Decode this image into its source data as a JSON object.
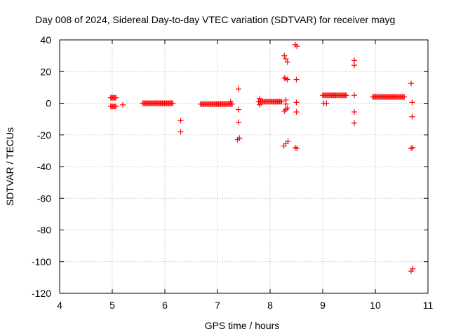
{
  "chart_data": {
    "type": "scatter",
    "title": "Day 008 of 2024, Sidereal Day-to-day VTEC variation (SDTVAR) for receiver mayg",
    "xlabel": "GPS time / hours",
    "ylabel": "SDTVAR / TECUs",
    "xlim": [
      4,
      11
    ],
    "ylim": [
      -120,
      40
    ],
    "xticks": [
      4,
      5,
      6,
      7,
      8,
      9,
      10,
      11
    ],
    "yticks": [
      -120,
      -100,
      -80,
      -60,
      -40,
      -20,
      0,
      20,
      40
    ],
    "grid": true,
    "marker": "plus",
    "color": "#ff0000",
    "series": [
      {
        "name": "SDTVAR",
        "segments": [
          {
            "x0": 4.97,
            "x1": 5.07,
            "y0": 3.5,
            "y1": 3.5
          },
          {
            "x0": 4.97,
            "x1": 5.07,
            "y0": -2.0,
            "y1": -2.0
          },
          {
            "x0": 5.58,
            "x1": 6.15,
            "y0": 0.0,
            "y1": 0.0
          },
          {
            "x0": 6.68,
            "x1": 7.28,
            "y0": -0.5,
            "y1": -0.5
          },
          {
            "x0": 7.78,
            "x1": 8.22,
            "y0": 1.0,
            "y1": 1.0
          },
          {
            "x0": 9.0,
            "x1": 9.45,
            "y0": 5.0,
            "y1": 5.0
          },
          {
            "x0": 9.95,
            "x1": 10.55,
            "y0": 4.0,
            "y1": 4.0
          }
        ],
        "points": [
          {
            "x": 5.2,
            "y": -1
          },
          {
            "x": 6.3,
            "y": -11
          },
          {
            "x": 6.3,
            "y": -18
          },
          {
            "x": 7.25,
            "y": 1
          },
          {
            "x": 7.4,
            "y": 9
          },
          {
            "x": 7.4,
            "y": -4
          },
          {
            "x": 7.4,
            "y": -12
          },
          {
            "x": 7.38,
            "y": -23
          },
          {
            "x": 7.42,
            "y": -22
          },
          {
            "x": 7.8,
            "y": 3
          },
          {
            "x": 7.8,
            "y": -1
          },
          {
            "x": 8.27,
            "y": 30
          },
          {
            "x": 8.3,
            "y": 28
          },
          {
            "x": 8.33,
            "y": 26
          },
          {
            "x": 8.27,
            "y": 16
          },
          {
            "x": 8.3,
            "y": 15.5
          },
          {
            "x": 8.33,
            "y": 15
          },
          {
            "x": 8.3,
            "y": 2
          },
          {
            "x": 8.3,
            "y": -0.5
          },
          {
            "x": 8.27,
            "y": -5
          },
          {
            "x": 8.3,
            "y": -4
          },
          {
            "x": 8.33,
            "y": -3
          },
          {
            "x": 8.26,
            "y": -27
          },
          {
            "x": 8.3,
            "y": -25.5
          },
          {
            "x": 8.34,
            "y": -24
          },
          {
            "x": 8.48,
            "y": 37
          },
          {
            "x": 8.51,
            "y": 36
          },
          {
            "x": 8.5,
            "y": 15
          },
          {
            "x": 8.5,
            "y": 0.5
          },
          {
            "x": 8.5,
            "y": -5.5
          },
          {
            "x": 8.48,
            "y": -28
          },
          {
            "x": 8.51,
            "y": -28.5
          },
          {
            "x": 9.02,
            "y": 0
          },
          {
            "x": 9.07,
            "y": 0
          },
          {
            "x": 9.6,
            "y": 27
          },
          {
            "x": 9.6,
            "y": 24
          },
          {
            "x": 9.6,
            "y": 5
          },
          {
            "x": 9.6,
            "y": -5.5
          },
          {
            "x": 9.6,
            "y": -12.5
          },
          {
            "x": 10.68,
            "y": 12.5
          },
          {
            "x": 10.7,
            "y": 0.5
          },
          {
            "x": 10.7,
            "y": -8.5
          },
          {
            "x": 10.68,
            "y": -28.5
          },
          {
            "x": 10.71,
            "y": -28
          },
          {
            "x": 10.68,
            "y": -106
          },
          {
            "x": 10.71,
            "y": -104.5
          }
        ]
      }
    ]
  }
}
